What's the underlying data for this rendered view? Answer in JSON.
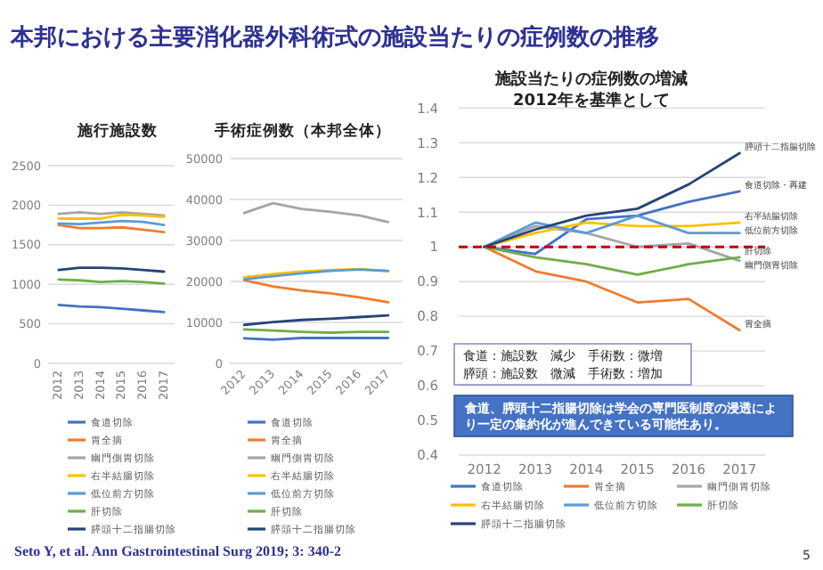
{
  "chart_data": [
    {
      "type": "other",
      "title": "本邦における主要消化器外科術式の施設当たりの症例数の推移",
      "annotations": [
        "Seto Y, et al. Ann Gastrointestinal Surg 2019; 3: 340-2",
        "5"
      ]
    },
    {
      "type": "line",
      "title": "施行施設数",
      "categories": [
        "2012",
        "2013",
        "2014",
        "2015",
        "2016",
        "2017"
      ],
      "ylim": [
        0,
        2500
      ],
      "yticks": [
        0,
        500,
        1000,
        1500,
        2000,
        2500
      ],
      "grid": "y",
      "legend": "bottom",
      "series": [
        {
          "name": "食道切除",
          "color": "#4472c4",
          "values": [
            740,
            720,
            710,
            690,
            670,
            650
          ]
        },
        {
          "name": "胃全摘",
          "color": "#ed7d31",
          "values": [
            1750,
            1710,
            1710,
            1720,
            1690,
            1660
          ]
        },
        {
          "name": "幽門側胃切除",
          "color": "#a5a5a5",
          "values": [
            1890,
            1910,
            1890,
            1910,
            1890,
            1870
          ]
        },
        {
          "name": "右半結腸切除",
          "color": "#ffc000",
          "values": [
            1830,
            1830,
            1830,
            1880,
            1870,
            1850
          ]
        },
        {
          "name": "低位前方切除",
          "color": "#5b9bd5",
          "values": [
            1770,
            1760,
            1780,
            1800,
            1790,
            1750
          ]
        },
        {
          "name": "肝切除",
          "color": "#70ad47",
          "values": [
            1060,
            1050,
            1030,
            1040,
            1030,
            1010
          ]
        },
        {
          "name": "膵頭十二指腸切除",
          "color": "#264478",
          "values": [
            1180,
            1210,
            1210,
            1200,
            1180,
            1160
          ]
        }
      ]
    },
    {
      "type": "line",
      "title": "手術症例数（本邦全体）",
      "categories": [
        "2012",
        "2013",
        "2014",
        "2015",
        "2016",
        "2017"
      ],
      "ylim": [
        0,
        50000
      ],
      "yticks": [
        0,
        10000,
        20000,
        30000,
        40000,
        50000
      ],
      "grid": "y",
      "legend": "bottom",
      "series": [
        {
          "name": "食道切除",
          "color": "#4472c4",
          "values": [
            6100,
            5800,
            6200,
            6200,
            6200,
            6200
          ]
        },
        {
          "name": "胃全摘",
          "color": "#ed7d31",
          "values": [
            20300,
            18800,
            17800,
            17100,
            16100,
            14900
          ]
        },
        {
          "name": "幽門側胃切除",
          "color": "#a5a5a5",
          "values": [
            36700,
            39100,
            37700,
            37000,
            36100,
            34500
          ]
        },
        {
          "name": "右半結腸切除",
          "color": "#ffc000",
          "values": [
            21000,
            21800,
            22400,
            22800,
            23000,
            22500
          ]
        },
        {
          "name": "低位前方切除",
          "color": "#5b9bd5",
          "values": [
            20500,
            21300,
            22000,
            22600,
            22900,
            22600
          ]
        },
        {
          "name": "肝切除",
          "color": "#70ad47",
          "values": [
            8300,
            8000,
            7700,
            7500,
            7700,
            7700
          ]
        },
        {
          "name": "膵頭十二指腸切除",
          "color": "#264478",
          "values": [
            9400,
            10100,
            10600,
            10900,
            11300,
            11700
          ]
        }
      ]
    },
    {
      "type": "line",
      "title": "施設当たりの症例数の増減\n2012年を基準として",
      "categories": [
        "2012",
        "2013",
        "2014",
        "2015",
        "2016",
        "2017"
      ],
      "ylim": [
        0.4,
        1.4
      ],
      "yticks": [
        0.4,
        0.5,
        0.6,
        0.7,
        0.8,
        0.9,
        1,
        1.1,
        1.2,
        1.3,
        1.4
      ],
      "grid": "y",
      "legend": "bottom",
      "series": [
        {
          "name": "食道切除",
          "color": "#4472c4",
          "values": [
            1,
            0.98,
            1.08,
            1.09,
            1.13,
            1.16
          ]
        },
        {
          "name": "胃全摘",
          "color": "#ed7d31",
          "values": [
            1,
            0.93,
            0.9,
            0.84,
            0.85,
            0.76
          ]
        },
        {
          "name": "幽門側胃切除",
          "color": "#a5a5a5",
          "values": [
            1,
            1.06,
            1.04,
            1.0,
            1.01,
            0.96
          ]
        },
        {
          "name": "右半結腸切除",
          "color": "#ffc000",
          "values": [
            1,
            1.04,
            1.07,
            1.06,
            1.06,
            1.07
          ]
        },
        {
          "name": "低位前方切除",
          "color": "#5b9bd5",
          "values": [
            1,
            1.07,
            1.04,
            1.09,
            1.04,
            1.04
          ]
        },
        {
          "name": "肝切除",
          "color": "#70ad47",
          "values": [
            1,
            0.97,
            0.95,
            0.92,
            0.95,
            0.97
          ]
        },
        {
          "name": "膵頭十二指腸切除",
          "color": "#264478",
          "values": [
            1,
            1.05,
            1.09,
            1.11,
            1.18,
            1.27
          ]
        }
      ],
      "ref_lines": [
        {
          "axis": "y",
          "value": 1,
          "color": "#c00000",
          "line_style": "dashed"
        }
      ],
      "annotations": [
        "食道：施設数　減少　手術数：微増",
        "膵頭：施設数　微減　手術数：増加",
        "食道、膵頭十二指腸切除は学会の専門医制度の浸透により一定の集約化が進んできている可能性あり。",
        {
          "text": "膵頭十二指腸切除",
          "x": "2017",
          "y": 1.27
        },
        {
          "text": "食道切除・再建",
          "x": "2017",
          "y": 1.16
        },
        {
          "text": "右半結腸切除",
          "x": "2017",
          "y": 1.07
        },
        {
          "text": "低位前方切除",
          "x": "2017",
          "y": 1.04
        },
        {
          "text": "幽門側胃切除",
          "x": "2017",
          "y": 0.96
        },
        {
          "text": "肝切除",
          "x": "2017",
          "y": 0.97
        },
        {
          "text": "胃全摘",
          "x": "2017",
          "y": 0.76
        }
      ]
    }
  ]
}
